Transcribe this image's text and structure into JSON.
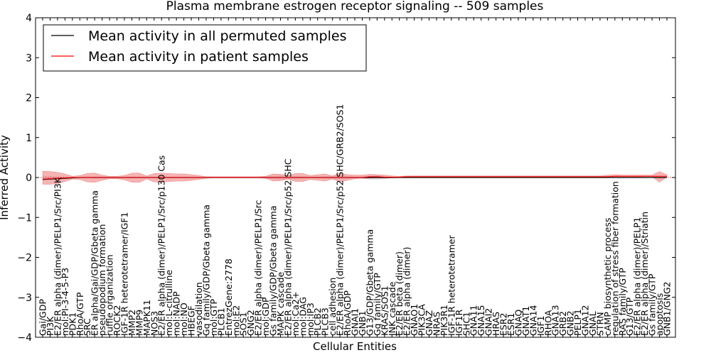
{
  "chart_data": {
    "type": "line",
    "title": "Plasma membrane estrogen receptor signaling -- 509 samples",
    "xlabel": "Cellular Entities",
    "ylabel": "Inferred Activity",
    "ylim": [
      -4,
      4
    ],
    "yticks": [
      "−4",
      "−3",
      "−2",
      "−1",
      "0",
      "1",
      "2",
      "3",
      "4"
    ],
    "grid": false,
    "legend_position": "top-left",
    "colors": {
      "permuted": "#000000",
      "patient": "#ff0000",
      "patient_band": "#f08080",
      "permuted_band": "#c8c8d8",
      "zero_line": "#ff0000"
    },
    "categories": [
      "Gai/GDP",
      "PI3K",
      "E2/ER alpha (dimer)/PELP1/Src/PI3K",
      "mol:PI-3-4-5-P3",
      "PDK1",
      "RhoA/GTP",
      "SRC",
      "ER alpha/Gai/GDP/Gbeta gamma",
      "pseudopodium formation",
      "ruffle organization",
      "ROCK2",
      "IGF-1R heterotetramer/IGF1",
      "MMP2",
      "MMP9",
      "MAPK11",
      "NOS3",
      "E2/ER alpha (dimer)/PELP1/Src/p130 Cas",
      "mol:L-citrulline",
      "mol:NADP",
      "mol:NO",
      "HBEGF",
      "vasodilation",
      "Gq family/GDP/Gbeta gamma",
      "mol:GTP",
      "PLCB1",
      "EntrezGene:2778",
      "mol:E2",
      "SOS1",
      "GNG2",
      "E2/ER alpha (dimer)/PELP1/Src",
      "mol:GDP",
      "Gs family/GDP/Gbeta gamma",
      "MAPK cascade",
      "E2/ER alpha (dimer)/PELP1/Src/p52 SHC",
      "mol:Ca2+",
      "mol:DAG",
      "mol:IP3",
      "PLCB2",
      "PLCB3",
      "cell adhesion",
      "E2/ER alpha (dimer)/PELP1/Src/p52 SHC/GRB2/SOS1",
      "RhoA/GDP",
      "GNAI1",
      "GNB1",
      "G13/GDP/Gbeta gamma",
      "Gq family/GTP",
      "KRAS/SOS1",
      "JNK cascade",
      "E2/ER beta (dimer)",
      "E2/ER alpha (dimer)",
      "GNAO1",
      "PIK3CA",
      "GNAZ",
      "NRAS",
      "PIK3R1",
      "IGF-1R heterotetramer",
      "IGF1R",
      "SHC1",
      "GNA11",
      "GNA15",
      "GNAI2",
      "HRAS",
      "ESR2",
      "ESR1",
      "GNAQ",
      "GNAT1",
      "GNA14",
      "IGF1",
      "RHOA",
      "GNA13",
      "GRB2",
      "GNB2",
      "PELP1",
      "GNA12",
      "GNAL",
      "STRN",
      "cAMP biosynthetic process",
      "regulation of stress fiber formation",
      "RAS family/GTP",
      "G13/GTP",
      "E2/ER alpha (dimer)/PELP1",
      "E2/ER alpha (dimer)/Striatin",
      "Gs family/GTP",
      "apoptosis",
      "GNB1/GNG2"
    ],
    "series": [
      {
        "name": "Mean activity in all permuted samples",
        "color": "#000000",
        "values": [
          -0.05,
          -0.04,
          -0.03,
          -0.02,
          -0.01,
          0,
          0,
          0,
          0,
          0,
          0,
          0,
          0,
          0,
          0,
          0,
          0,
          0,
          0,
          0,
          0,
          0,
          0,
          0,
          0,
          0,
          0,
          0,
          0,
          0,
          0,
          0,
          0,
          0,
          0,
          0,
          0,
          0,
          0,
          0,
          0,
          0,
          0,
          0,
          0,
          0,
          0,
          0,
          0,
          0,
          0,
          0,
          0,
          0,
          0,
          0,
          0,
          0,
          0,
          0,
          0,
          0,
          0,
          0,
          0,
          0,
          0,
          0,
          0,
          0,
          0,
          0,
          0,
          0,
          0,
          0,
          0,
          0,
          0,
          0,
          0,
          0,
          0,
          0,
          0
        ],
        "band_low": [
          -0.05,
          -0.04,
          -0.03,
          -0.02,
          -0.02,
          -0.02,
          -0.02,
          -0.03,
          -0.03,
          -0.02,
          -0.02,
          -0.02,
          -0.02,
          -0.02,
          -0.02,
          -0.02,
          -0.02,
          -0.02,
          -0.02,
          -0.02,
          -0.02,
          -0.02,
          -0.02,
          -0.02,
          -0.02,
          -0.02,
          -0.02,
          -0.02,
          -0.02,
          -0.02,
          -0.03,
          -0.04,
          -0.05,
          -0.05,
          -0.04,
          -0.03,
          -0.02,
          -0.02,
          -0.03,
          -0.04,
          -0.05,
          -0.04,
          -0.02,
          -0.03,
          -0.05,
          -0.06,
          -0.03,
          -0.01,
          0,
          0,
          0,
          0,
          0,
          0,
          0,
          0,
          0,
          0,
          0,
          0,
          0,
          0,
          0,
          0,
          0,
          0,
          0,
          0,
          0,
          0,
          0,
          0,
          0,
          0,
          0,
          0,
          0,
          0,
          0,
          0,
          0,
          0,
          0,
          0,
          0
        ],
        "band_high": [
          0.05,
          0.04,
          0.03,
          0.02,
          0.02,
          0.02,
          0.02,
          0.03,
          0.03,
          0.02,
          0.02,
          0.02,
          0.02,
          0.02,
          0.02,
          0.02,
          0.02,
          0.02,
          0.02,
          0.02,
          0.02,
          0.02,
          0.02,
          0.02,
          0.02,
          0.02,
          0.02,
          0.02,
          0.02,
          0.02,
          0.03,
          0.04,
          0.05,
          0.05,
          0.04,
          0.03,
          0.02,
          0.02,
          0.03,
          0.04,
          0.05,
          0.04,
          0.02,
          0.03,
          0.05,
          0.06,
          0.03,
          0.01,
          0,
          0,
          0,
          0,
          0,
          0,
          0,
          0,
          0,
          0,
          0,
          0,
          0,
          0,
          0,
          0,
          0,
          0,
          0,
          0,
          0,
          0,
          0,
          0,
          0,
          0,
          0,
          0,
          0,
          0,
          0,
          0,
          0,
          0,
          0,
          0,
          0
        ]
      },
      {
        "name": "Mean activity in patient samples",
        "color": "#ff0000",
        "values": [
          -0.04,
          -0.03,
          -0.02,
          -0.01,
          0,
          0,
          0,
          0,
          0,
          0,
          0,
          0,
          0,
          0,
          0,
          0,
          0,
          0,
          0,
          0,
          0,
          0,
          0,
          0,
          0,
          0,
          0,
          0,
          0,
          0,
          0,
          0,
          0,
          0,
          0,
          0,
          0,
          0,
          0,
          0,
          0,
          0,
          0,
          0,
          0.02,
          0.02,
          0.01,
          0.01,
          0.01,
          0.02,
          0.02,
          0.02,
          0.02,
          0.02,
          0.02,
          0.02,
          0.02,
          0.02,
          0.02,
          0.02,
          0.02,
          0.02,
          0.02,
          0.02,
          0.02,
          0.02,
          0.02,
          0.02,
          0.02,
          0.02,
          0.02,
          0.02,
          0.02,
          0.02,
          0.02,
          0.02,
          0.02,
          0.03,
          0.03,
          0.03,
          0.03,
          0.03,
          0.03,
          0.03,
          0.03
        ],
        "band_low": [
          -0.17,
          -0.17,
          -0.15,
          -0.1,
          -0.04,
          -0.05,
          -0.11,
          -0.12,
          -0.07,
          -0.03,
          -0.03,
          -0.06,
          -0.12,
          -0.12,
          -0.04,
          -0.11,
          -0.12,
          -0.1,
          -0.09,
          -0.09,
          -0.07,
          -0.05,
          -0.02,
          -0.01,
          -0.01,
          -0.01,
          -0.01,
          -0.01,
          -0.01,
          -0.01,
          -0.02,
          -0.09,
          -0.08,
          -0.04,
          -0.1,
          -0.1,
          -0.05,
          -0.07,
          -0.09,
          -0.04,
          -0.11,
          -0.07,
          -0.03,
          -0.02,
          -0.02,
          -0.01,
          -0.02,
          -0.01,
          0,
          0.01,
          0.01,
          0.01,
          0.01,
          0.01,
          0.01,
          0.01,
          0.01,
          0.01,
          0.01,
          0.01,
          0.01,
          0.01,
          0.01,
          0.01,
          0.01,
          0.01,
          0.01,
          0.01,
          0.01,
          0.01,
          0.01,
          0.01,
          0.01,
          0.01,
          0.01,
          0.01,
          0.01,
          0.01,
          0.01,
          0.01,
          0.01,
          0.02,
          0.02,
          -0.12,
          0.01
        ],
        "band_high": [
          0.16,
          0.15,
          0.13,
          0.09,
          0.03,
          0.05,
          0.1,
          0.11,
          0.06,
          0.03,
          0.03,
          0.05,
          0.11,
          0.11,
          0.04,
          0.1,
          0.11,
          0.1,
          0.09,
          0.09,
          0.07,
          0.05,
          0.02,
          0.02,
          0.02,
          0.02,
          0.02,
          0.02,
          0.02,
          0.02,
          0.03,
          0.09,
          0.08,
          0.05,
          0.1,
          0.1,
          0.05,
          0.07,
          0.09,
          0.04,
          0.11,
          0.07,
          0.06,
          0.06,
          0.08,
          0.07,
          0.06,
          0.04,
          0.03,
          0.04,
          0.04,
          0.04,
          0.04,
          0.04,
          0.04,
          0.04,
          0.04,
          0.04,
          0.04,
          0.04,
          0.04,
          0.04,
          0.04,
          0.04,
          0.04,
          0.04,
          0.04,
          0.04,
          0.04,
          0.04,
          0.04,
          0.04,
          0.04,
          0.04,
          0.04,
          0.04,
          0.06,
          0.07,
          0.06,
          0.06,
          0.06,
          0.06,
          0.06,
          0.15,
          0.07
        ]
      }
    ]
  }
}
